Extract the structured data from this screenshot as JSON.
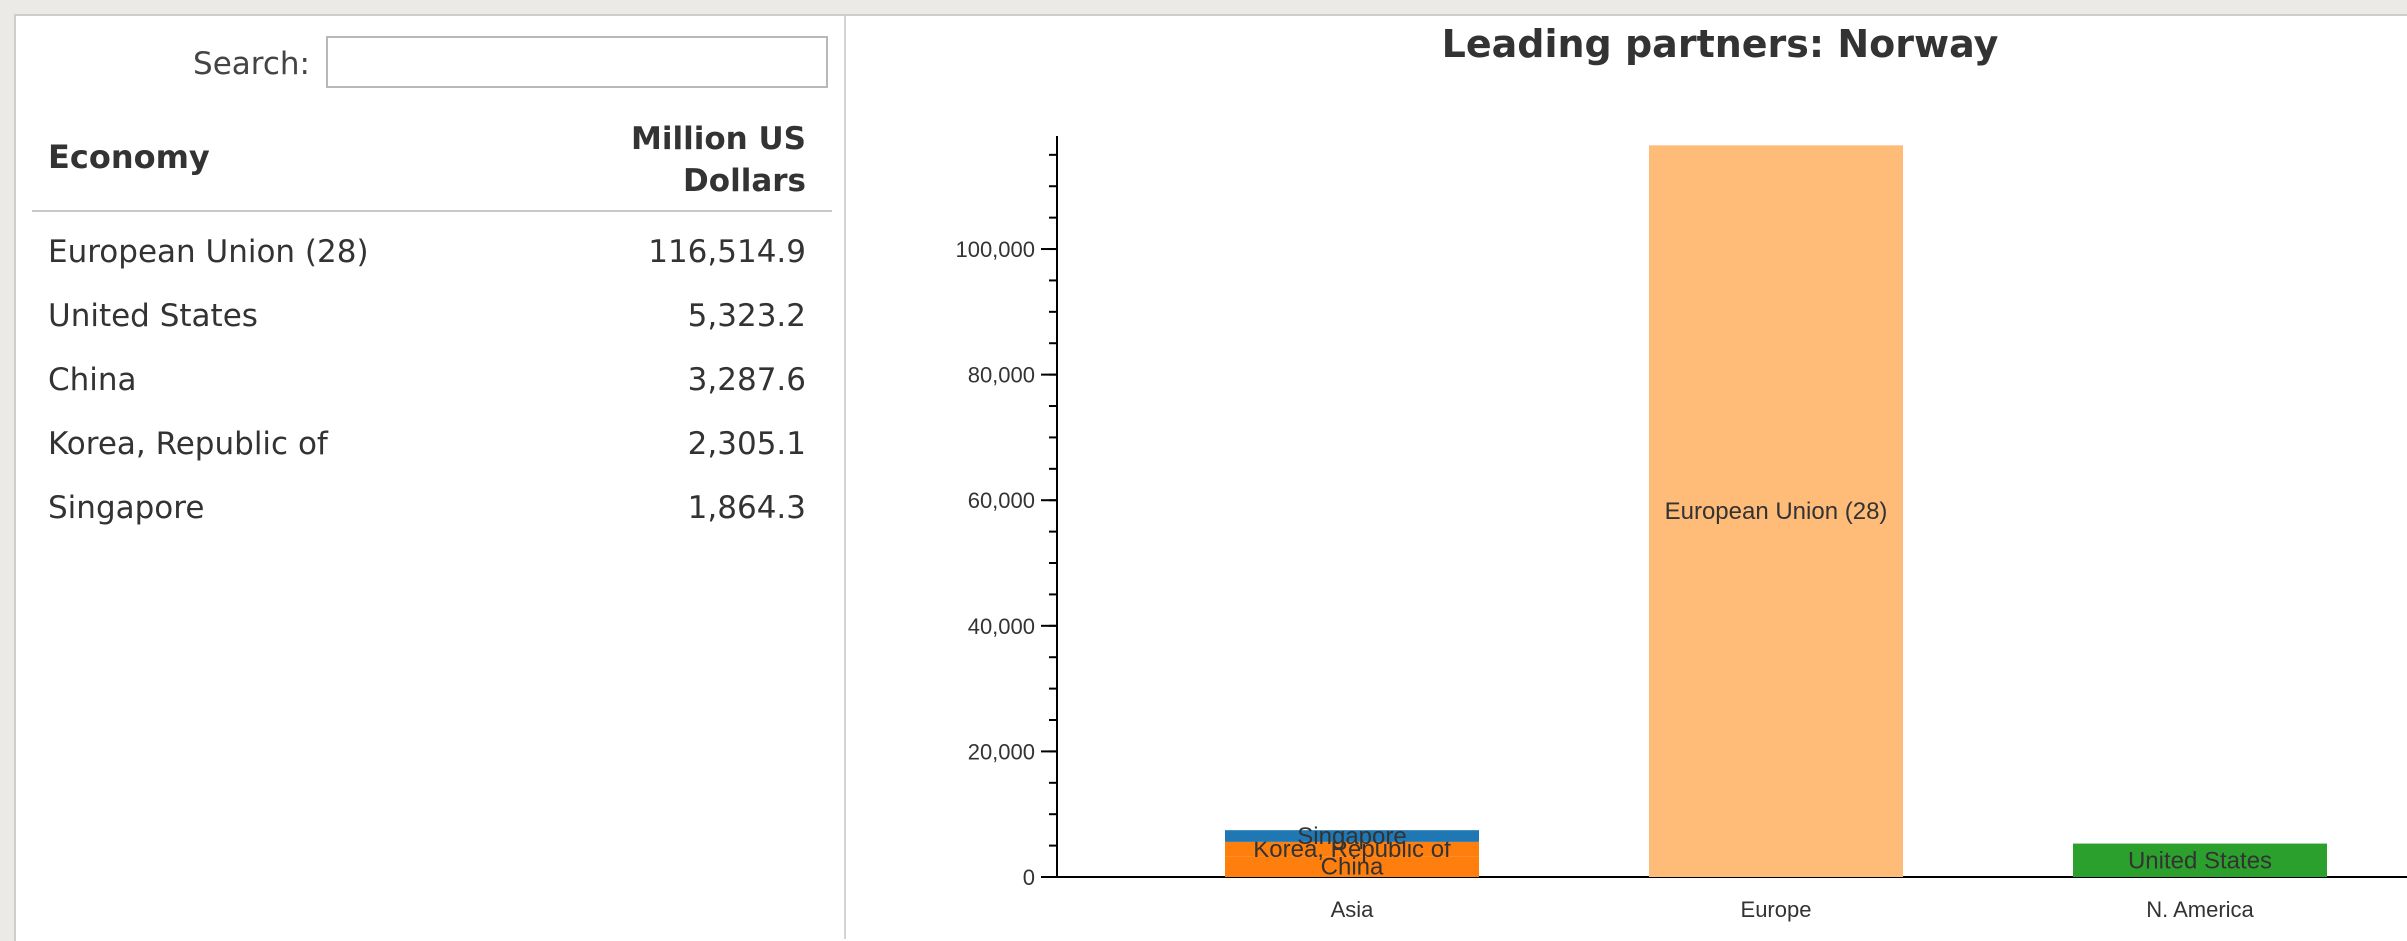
{
  "search": {
    "label": "Search:",
    "value": "",
    "placeholder": ""
  },
  "table": {
    "headers": {
      "economy": "Economy",
      "value_line1": "Million US",
      "value_line2": "Dollars"
    },
    "rows": [
      {
        "economy": "European Union (28)",
        "value": "116,514.9"
      },
      {
        "economy": "United States",
        "value": "5,323.2"
      },
      {
        "economy": "China",
        "value": "3,287.6"
      },
      {
        "economy": "Korea, Republic of",
        "value": "2,305.1"
      },
      {
        "economy": "Singapore",
        "value": "1,864.3"
      }
    ]
  },
  "colors": {
    "china": "#ff7f0e",
    "korea": "#ff7f0e",
    "singapore": "#1f77b4",
    "eu": "#ffbb78",
    "us": "#2ca02c"
  },
  "chart_data": {
    "type": "bar",
    "stacked": true,
    "title": "Leading partners: Norway",
    "categories": [
      "Asia",
      "Europe",
      "N. America"
    ],
    "ylim": [
      0,
      118000
    ],
    "yticks": [
      0,
      20000,
      40000,
      60000,
      80000,
      100000
    ],
    "ytick_labels": [
      "0",
      "20,000",
      "40,000",
      "60,000",
      "80,000",
      "100,000"
    ],
    "grid": false,
    "segments": [
      {
        "category": "Asia",
        "label": "China",
        "value": 3287.6,
        "color": "#ff7f0e"
      },
      {
        "category": "Asia",
        "label": "Korea, Republic of",
        "value": 2305.1,
        "color": "#ff7f0e"
      },
      {
        "category": "Asia",
        "label": "Singapore",
        "value": 1864.3,
        "color": "#1f77b4"
      },
      {
        "category": "Europe",
        "label": "European Union (28)",
        "value": 116514.9,
        "color": "#ffbb78"
      },
      {
        "category": "N. America",
        "label": "United States",
        "value": 5323.2,
        "color": "#2ca02c"
      }
    ]
  }
}
